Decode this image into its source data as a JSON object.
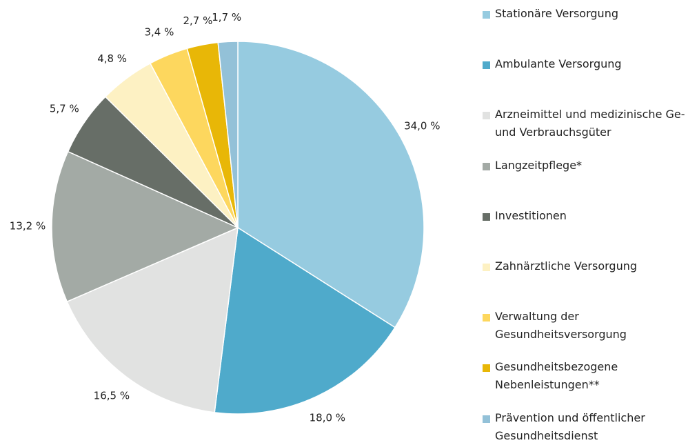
{
  "chart_data": {
    "type": "pie",
    "categories": [
      "Stationäre Versorgung",
      "Ambulante Versorgung",
      "Arzneimittel und medizinische Ge- und Verbrauchsgüter",
      "Langzeitpflege*",
      "Investitionen",
      "Zahnärztliche Versorgung",
      "Verwaltung der Gesundheitsversorgung",
      "Gesundheitsbezogene Nebenleistungen**",
      "Prävention und öffentlicher Gesundheitsdienst"
    ],
    "values": [
      34.0,
      18.0,
      16.5,
      13.2,
      5.7,
      4.8,
      3.4,
      2.7,
      1.7
    ],
    "value_labels": [
      "34,0 %",
      "18,0 %",
      "16,5 %",
      "13,2 %",
      "5,7 %",
      "4,8 %",
      "3,4 %",
      "2,7 %",
      "1,7 %"
    ],
    "colors": [
      "#96cbe0",
      "#4faacb",
      "#e1e2e1",
      "#a3aaa5",
      "#676e67",
      "#fdf1c3",
      "#fdd75e",
      "#e8b707",
      "#93c1d8"
    ]
  }
}
